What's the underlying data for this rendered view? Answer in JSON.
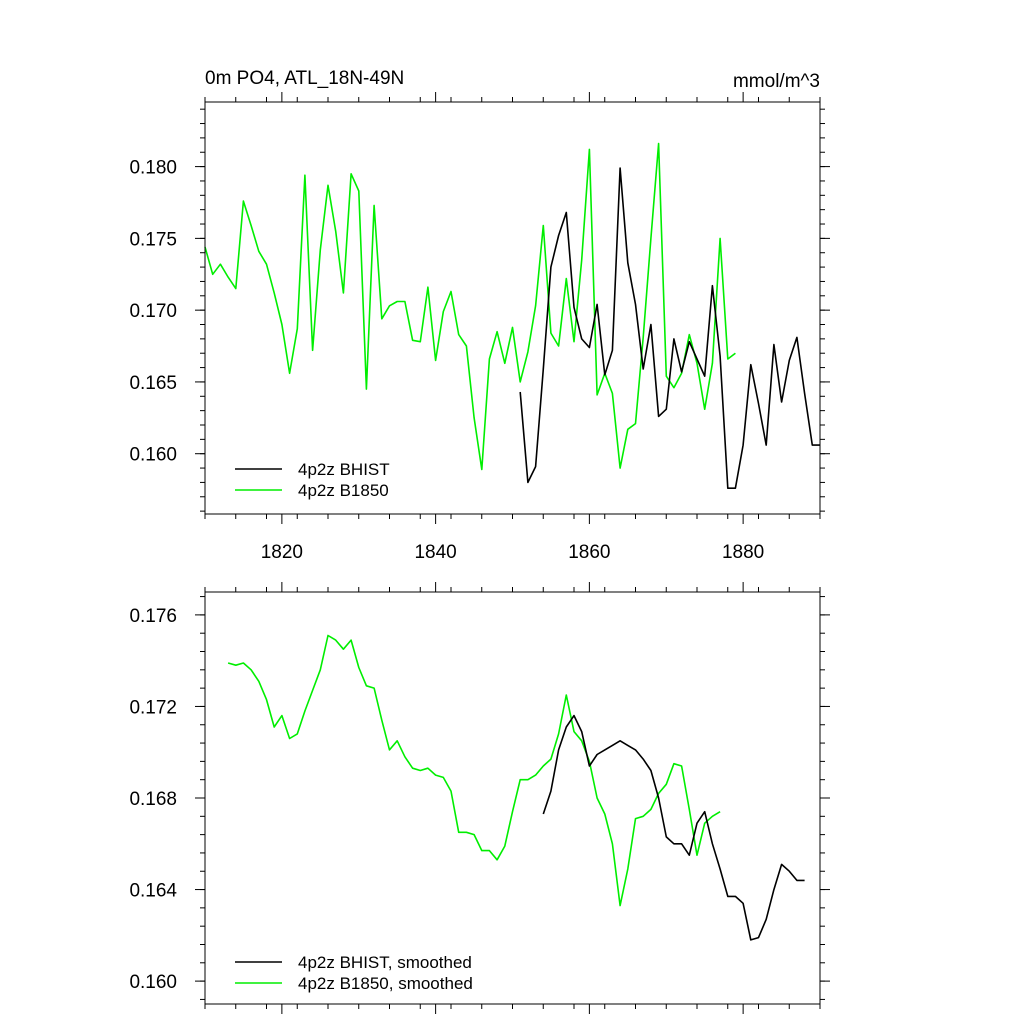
{
  "colors": {
    "bhist": "#000000",
    "b1850": "#00ee00"
  },
  "chart_data": [
    {
      "type": "line",
      "title": "0m PO4, ATL_18N-49N",
      "units": "mmol/m^3",
      "xlim": [
        1810,
        1890
      ],
      "ylim": [
        0.1558,
        0.1845
      ],
      "x_ticks": [
        1820,
        1840,
        1860,
        1880
      ],
      "x_tick_labels": [
        "1820",
        "1840",
        "1860",
        "1880"
      ],
      "y_ticks": [
        0.16,
        0.165,
        0.17,
        0.175,
        0.18
      ],
      "y_tick_labels": [
        "0.160",
        "0.165",
        "0.170",
        "0.175",
        "0.180"
      ],
      "legend_position": "bottom-left",
      "series": [
        {
          "name": "4p2z BHIST",
          "color": "#000000",
          "x_start": 1851,
          "values": [
            0.1643,
            0.158,
            0.1591,
            0.1659,
            0.173,
            0.1752,
            0.1768,
            0.1702,
            0.168,
            0.1674,
            0.1704,
            0.1655,
            0.1672,
            0.1799,
            0.1733,
            0.1704,
            0.1659,
            0.169,
            0.1626,
            0.1631,
            0.168,
            0.1657,
            0.1678,
            0.1666,
            0.1654,
            0.1717,
            0.1668,
            0.1576,
            0.1576,
            0.1606,
            0.1662,
            0.1635,
            0.1606,
            0.1676,
            0.1636,
            0.1665,
            0.1681,
            0.1642,
            0.1606,
            0.1606
          ]
        },
        {
          "name": "4p2z B1850",
          "color": "#00ee00",
          "x_start": 1810,
          "values": [
            0.1744,
            0.1725,
            0.1732,
            0.1723,
            0.1715,
            0.1776,
            0.1759,
            0.1741,
            0.1732,
            0.1712,
            0.169,
            0.1656,
            0.1687,
            0.1794,
            0.1672,
            0.1742,
            0.1787,
            0.1755,
            0.1712,
            0.1795,
            0.1783,
            0.1645,
            0.1773,
            0.1694,
            0.1703,
            0.1706,
            0.1706,
            0.1679,
            0.1678,
            0.1716,
            0.1665,
            0.1699,
            0.1713,
            0.1683,
            0.1675,
            0.1625,
            0.1589,
            0.1666,
            0.1685,
            0.1663,
            0.1688,
            0.165,
            0.1671,
            0.1703,
            0.1759,
            0.1684,
            0.1675,
            0.1722,
            0.1678,
            0.1735,
            0.1812,
            0.1641,
            0.1656,
            0.1642,
            0.159,
            0.1617,
            0.1621,
            0.1681,
            0.175,
            0.1816,
            0.1654,
            0.1646,
            0.1656,
            0.1683,
            0.1663,
            0.1631,
            0.1663,
            0.175,
            0.1666,
            0.167
          ]
        }
      ]
    },
    {
      "type": "line",
      "title": "",
      "xlim": [
        1810,
        1890
      ],
      "ylim": [
        0.159,
        0.177
      ],
      "x_ticks": [
        1820,
        1840,
        1860,
        1880
      ],
      "x_tick_labels": [],
      "y_ticks": [
        0.16,
        0.164,
        0.168,
        0.172,
        0.176
      ],
      "y_tick_labels": [
        "0.160",
        "0.164",
        "0.168",
        "0.172",
        "0.176"
      ],
      "legend_position": "bottom-left",
      "series": [
        {
          "name": "4p2z BHIST, smoothed",
          "color": "#000000",
          "x_start": 1854,
          "values": [
            0.1673,
            0.1683,
            0.1701,
            0.1711,
            0.1716,
            0.1709,
            0.1694,
            0.1699,
            0.1701,
            0.1703,
            0.1705,
            0.1703,
            0.1701,
            0.1697,
            0.1692,
            0.168,
            0.1663,
            0.166,
            0.166,
            0.1655,
            0.1669,
            0.1674,
            0.166,
            0.1649,
            0.1637,
            0.1637,
            0.1634,
            0.1618,
            0.1619,
            0.1627,
            0.164,
            0.1651,
            0.1648,
            0.1644,
            0.1644
          ]
        },
        {
          "name": "4p2z B1850, smoothed",
          "color": "#00ee00",
          "x_start": 1813,
          "values": [
            0.1739,
            0.1738,
            0.1739,
            0.1736,
            0.1731,
            0.1723,
            0.1711,
            0.1716,
            0.1706,
            0.1708,
            0.1718,
            0.1727,
            0.1736,
            0.1751,
            0.1749,
            0.1745,
            0.1749,
            0.1737,
            0.1729,
            0.1728,
            0.1714,
            0.1701,
            0.1705,
            0.1698,
            0.1693,
            0.1692,
            0.1693,
            0.169,
            0.1689,
            0.1683,
            0.1665,
            0.1665,
            0.1664,
            0.1657,
            0.1657,
            0.1653,
            0.1659,
            0.1674,
            0.1688,
            0.1688,
            0.169,
            0.1694,
            0.1697,
            0.1708,
            0.1725,
            0.1709,
            0.1705,
            0.1696,
            0.168,
            0.1673,
            0.166,
            0.1633,
            0.1649,
            0.1671,
            0.1672,
            0.1675,
            0.1682,
            0.1686,
            0.1695,
            0.1694,
            0.1675,
            0.1655,
            0.1669,
            0.1672,
            0.1674
          ]
        }
      ]
    }
  ]
}
